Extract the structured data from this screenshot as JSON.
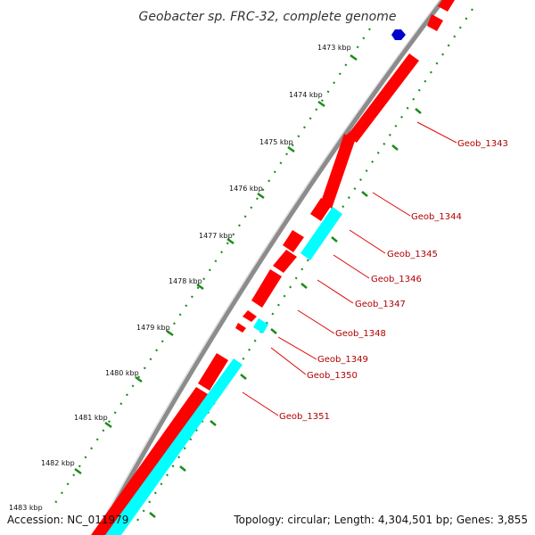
{
  "title": "Geobacter sp. FRC-32, complete genome",
  "footer": {
    "accession": "Accession: NC_011979",
    "topology": "Topology: circular; Length: 4,304,501 bp; Genes: 3,855"
  },
  "colors": {
    "backbone": "#8c8c8c",
    "forward_gene": "#ff0000",
    "reverse_gene": "#00ffff",
    "marker": "#0000cc",
    "gc_dots": "#1a8c1a",
    "label_line": "#e00000"
  },
  "kbp_ticks": [
    "1473 kbp",
    "1474 kbp",
    "1475 kbp",
    "1476 kbp",
    "1477 kbp",
    "1478 kbp",
    "1479 kbp",
    "1480 kbp",
    "1481 kbp",
    "1482 kbp",
    "1483 kbp"
  ],
  "gene_labels": [
    "Geob_1343",
    "Geob_1344",
    "Geob_1345",
    "Geob_1346",
    "Geob_1347",
    "Geob_1348",
    "Geob_1349",
    "Geob_1350",
    "Geob_1351"
  ]
}
